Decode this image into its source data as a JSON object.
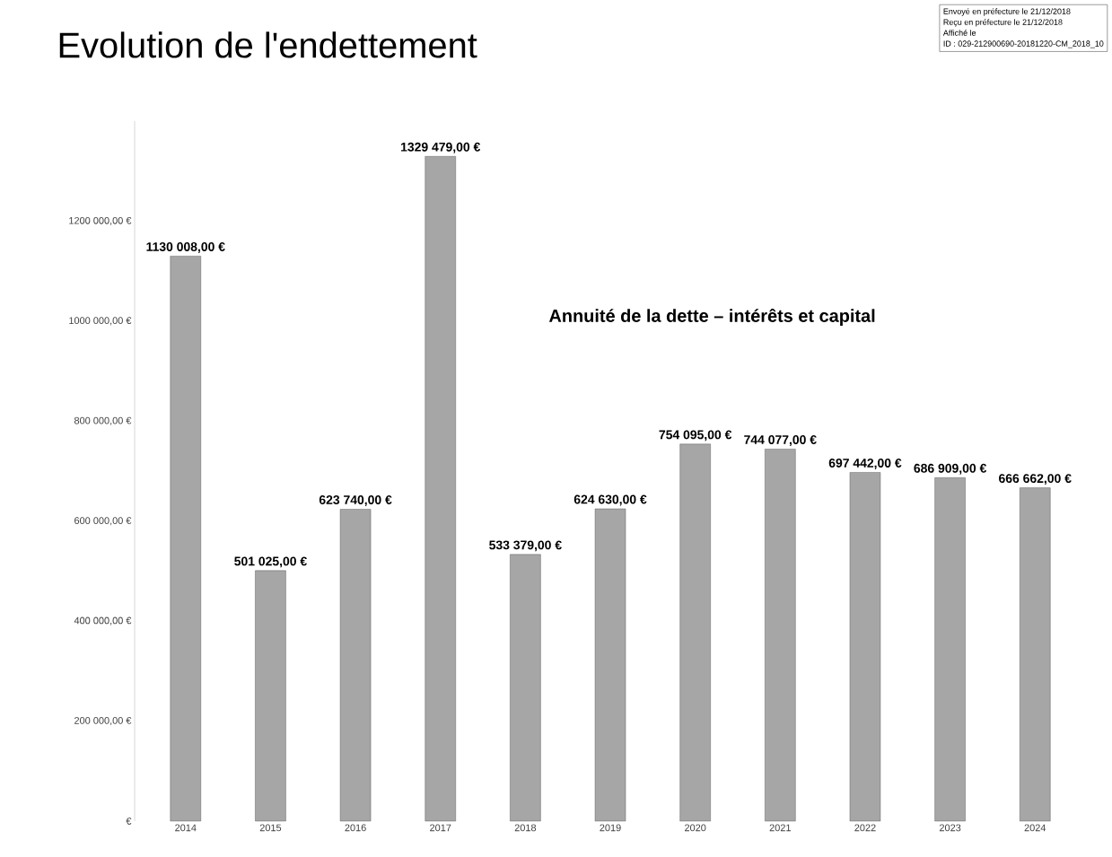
{
  "chart_data": {
    "type": "bar",
    "title": "Evolution de l'endettement",
    "subtitle": "Annuité de la dette – intérêts et capital",
    "categories": [
      "2014",
      "2015",
      "2016",
      "2017",
      "2018",
      "2019",
      "2020",
      "2021",
      "2022",
      "2023",
      "2024"
    ],
    "values": [
      1130008,
      501025,
      623740,
      1329479,
      533379,
      624630,
      754095,
      744077,
      697442,
      686909,
      666662
    ],
    "value_labels": [
      "1130 008,00 €",
      "501 025,00 €",
      "623 740,00 €",
      "1329 479,00 €",
      "533 379,00 €",
      "624 630,00 €",
      "754 095,00 €",
      "744 077,00 €",
      "697 442,00 €",
      "686 909,00 €",
      "666 662,00 €"
    ],
    "color": "#a6a6a6",
    "ylim": [
      0,
      1400000
    ],
    "yticks": [
      {
        "value": 0,
        "label": "€"
      },
      {
        "value": 200000,
        "label": "200 000,00 €"
      },
      {
        "value": 400000,
        "label": "400 000,00 €"
      },
      {
        "value": 600000,
        "label": "600 000,00 €"
      },
      {
        "value": 800000,
        "label": "800 000,00 €"
      },
      {
        "value": 1000000,
        "label": "1000 000,00 €"
      },
      {
        "value": 1200000,
        "label": "1200 000,00 €"
      }
    ],
    "grid": false,
    "annotations": [
      "Envoyé en préfecture le 21/12/2018",
      "Reçu en préfecture le 21/12/2018",
      "Affiché le",
      "ID : 029-212900690-20181220-CM_2018_10"
    ]
  }
}
